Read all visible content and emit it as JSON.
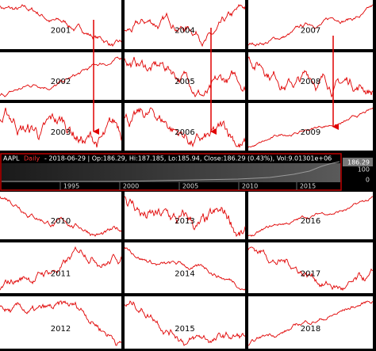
{
  "ticker_bar": {
    "symbol": "AAPL",
    "interval": "Daily",
    "details": "- 2018-06-29 | Op:186.29, Hi:187.185, Lo:185.94, Close:186.29 (0.43%), Vol:9.01301e+06",
    "last_price": "186.29",
    "axis_labels": [
      "100",
      "0"
    ],
    "x_labels": [
      "1995",
      "2000",
      "2005",
      "2010",
      "2015"
    ]
  },
  "top_grid": [
    [
      "2001",
      "2004",
      "2007"
    ],
    [
      "2002",
      "2005",
      "2008"
    ],
    [
      "2003",
      "2006",
      "2009"
    ]
  ],
  "bottom_grid": [
    [
      "2010",
      "2013",
      "2016"
    ],
    [
      "2011",
      "2014",
      "2017"
    ],
    [
      "2012",
      "2015",
      "2018"
    ]
  ]
}
